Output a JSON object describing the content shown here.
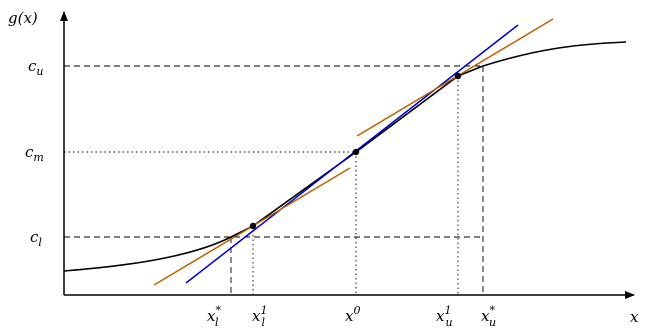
{
  "axes": {
    "y_label": "g(x)",
    "x_label": "x"
  },
  "y_levels": [
    {
      "base": "c",
      "sub": "u"
    },
    {
      "base": "c",
      "sub": "m"
    },
    {
      "base": "c",
      "sub": "l"
    }
  ],
  "x_ticks": [
    {
      "base": "x",
      "sub": "l",
      "sup": "*"
    },
    {
      "base": "x",
      "sub": "l",
      "sup": "1"
    },
    {
      "base": "x",
      "sub": "",
      "sup": "0"
    },
    {
      "base": "x",
      "sub": "u",
      "sup": "1"
    },
    {
      "base": "x",
      "sub": "u",
      "sup": "*"
    }
  ],
  "colors": {
    "curve": "#000000",
    "tangent_main": "#0000cc",
    "tangent_side": "#c06000",
    "guides": "#000000"
  }
}
